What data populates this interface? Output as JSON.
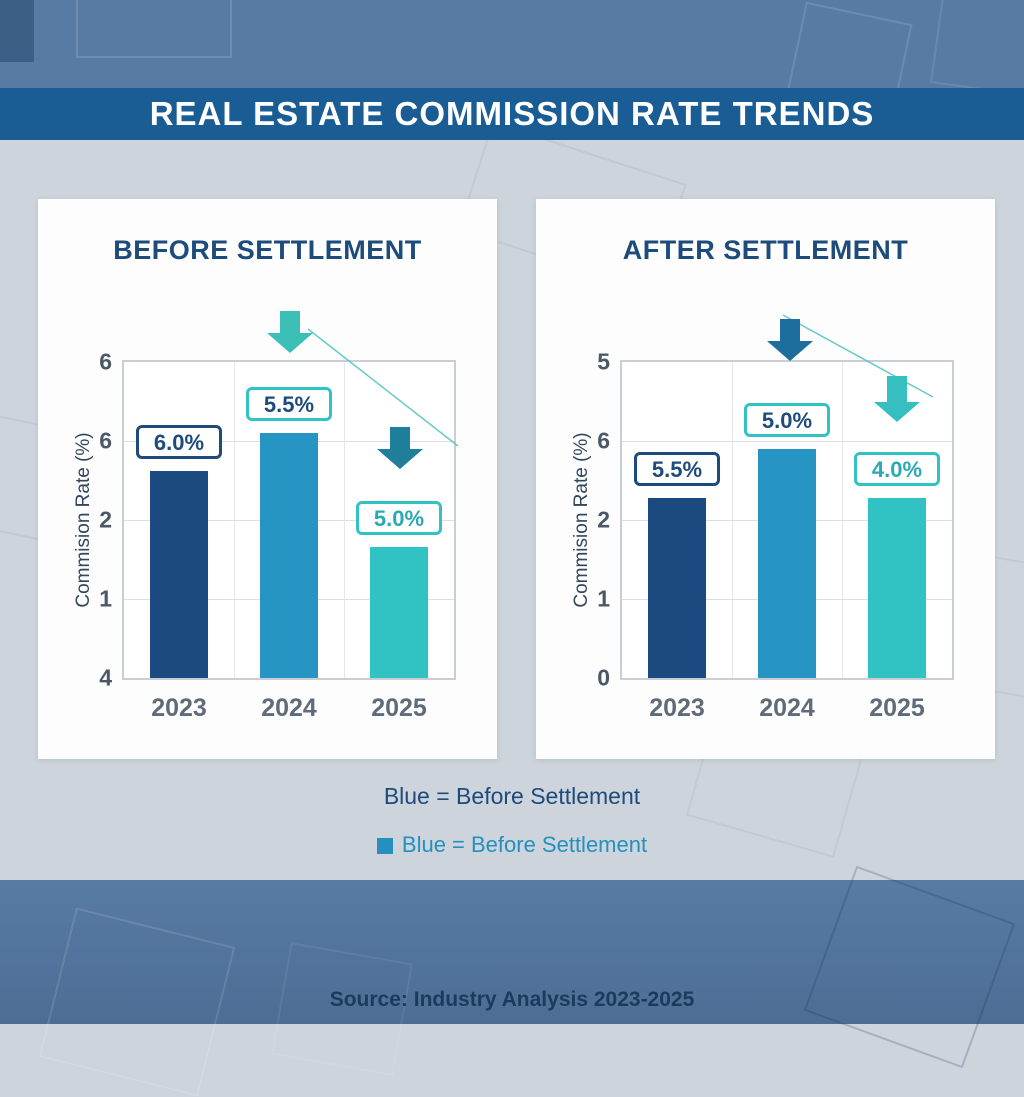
{
  "header": {
    "title": "REAL ESTATE COMMISSION RATE TRENDS"
  },
  "legend": {
    "line1": "Blue = Before Settlement",
    "line2": "Blue = Before Settlement",
    "swatch_color": "#2590bf"
  },
  "source": "Source: Industry Analysis 2023-2025",
  "colors": {
    "banner": "#1a5c94",
    "steel_band": "#587ba4",
    "middle_band": "#cdd4dc",
    "navy": "#1d4b7c",
    "legend_blue": "#2590bf",
    "source_text": "#1c3a5e"
  },
  "chart_data": [
    {
      "type": "bar",
      "title": "BEFORE SETTLEMENT",
      "xlabel": "",
      "ylabel": "Commision Rate (%)",
      "categories": [
        "2023",
        "2024",
        "2025"
      ],
      "values": [
        6.0,
        5.5,
        5.0
      ],
      "value_labels": [
        "6.0%",
        "5.5%",
        "5.0%"
      ],
      "ytick_labels": [
        "6",
        "6",
        "2",
        "1",
        "4"
      ],
      "bar_colors": [
        "#1a4a80",
        "#2795c3",
        "#31c2c3"
      ],
      "label_border_colors": [
        "#1d4b7c",
        "#31c2c3",
        "#31c2c3"
      ],
      "label_text_colors": [
        "#1d4b7c",
        "#1d4b7c",
        "#2aa9b4"
      ],
      "bar_height_frac": [
        0.655,
        0.775,
        0.415
      ],
      "grid": true,
      "legend_position": "none",
      "arrow_colors": [
        "#3cbfb6",
        "#1f7e99"
      ],
      "trend_line_color": "#56c4c2",
      "annotations": [
        "down-arrow-teal",
        "down-arrow-dark",
        "declining-trend-line"
      ]
    },
    {
      "type": "bar",
      "title": "AFTER SETTLEMENT",
      "xlabel": "",
      "ylabel": "Commision Rate (%)",
      "categories": [
        "2023",
        "2024",
        "2025"
      ],
      "values": [
        5.5,
        5.0,
        4.0
      ],
      "value_labels": [
        "5.5%",
        "5.0%",
        "4.0%"
      ],
      "ytick_labels": [
        "5",
        "6",
        "2",
        "1",
        "0"
      ],
      "bar_colors": [
        "#1a4a80",
        "#2795c3",
        "#31c2c3"
      ],
      "label_border_colors": [
        "#1d4b7c",
        "#31c2c3",
        "#31c2c3"
      ],
      "label_text_colors": [
        "#1d4b7c",
        "#1d4b7c",
        "#2aa9b4"
      ],
      "bar_height_frac": [
        0.57,
        0.725,
        0.57
      ],
      "grid": true,
      "legend_position": "none",
      "arrow_colors": [
        "#1d6e9f",
        "#35bfc0"
      ],
      "trend_line_color": "#56c4c2",
      "annotations": [
        "down-arrow-dark",
        "down-arrow-teal",
        "declining-trend-line"
      ]
    }
  ]
}
